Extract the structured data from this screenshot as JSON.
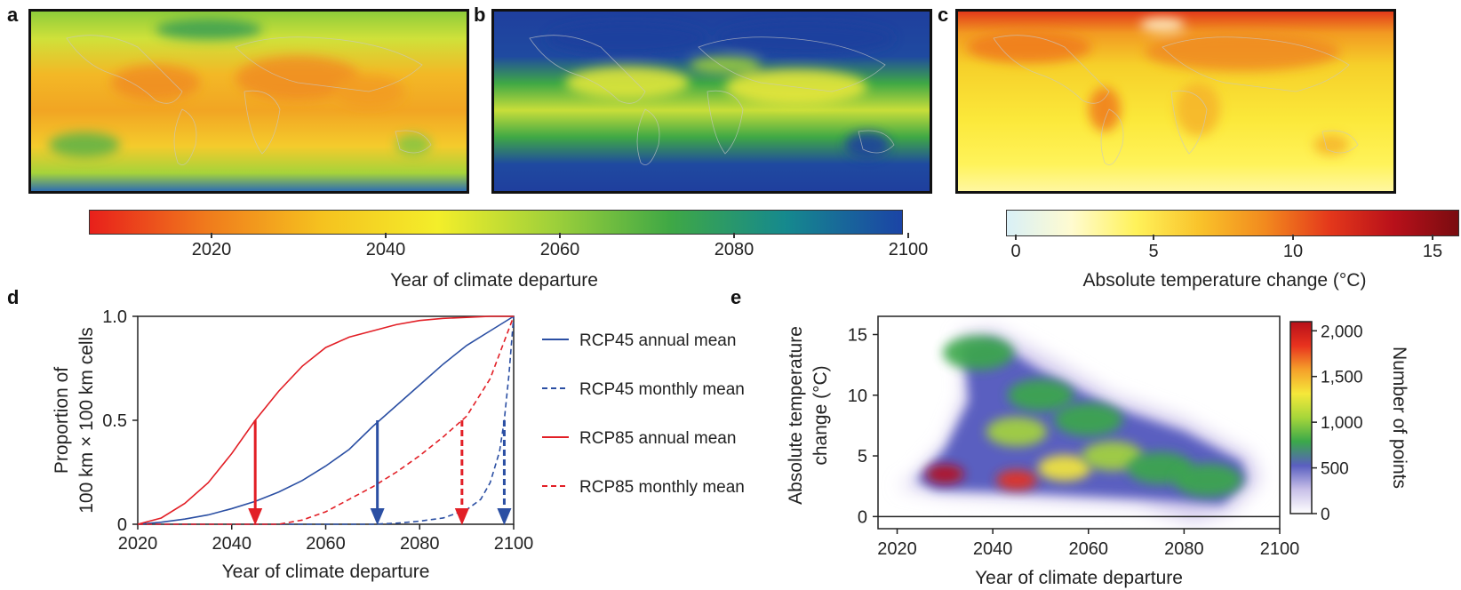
{
  "panel_labels": {
    "a": "a",
    "b": "b",
    "c": "c",
    "d": "d",
    "e": "e"
  },
  "colorbar_year": {
    "label": "Year of climate departure",
    "ticks": [
      "2020",
      "2040",
      "2060",
      "2080",
      "2100"
    ],
    "colors": [
      "#e8201b",
      "#f07a1c",
      "#f5c21f",
      "#f3ee2a",
      "#9ed03a",
      "#3fa845",
      "#15898e",
      "#1b44a6"
    ]
  },
  "colorbar_temp": {
    "label": "Absolute temperature change (°C)",
    "ticks": [
      "0",
      "5",
      "10",
      "15"
    ],
    "colors": [
      "#d9f0f7",
      "#fffbd0",
      "#fff25a",
      "#f9c22a",
      "#f28a1e",
      "#e4381b",
      "#b8101a",
      "#7a0c10"
    ]
  },
  "chart_data": [
    {
      "panel": "d",
      "type": "line",
      "xlabel": "Year of climate departure",
      "ylabel": "Proportion of 100 km × 100 km cells",
      "ylabel_lines": [
        "Proportion of",
        "100 km × 100 km cells"
      ],
      "xlim": [
        2020,
        2100
      ],
      "ylim": [
        0,
        1
      ],
      "xticks": [
        "2020",
        "2040",
        "2060",
        "2080",
        "2100"
      ],
      "yticks": [
        "0",
        "0.5",
        "1.0"
      ],
      "legend_position": "right",
      "series": [
        {
          "name": "RCP45 annual mean",
          "color": "#2b4fa3",
          "dash": false,
          "x": [
            2020,
            2025,
            2030,
            2035,
            2040,
            2045,
            2050,
            2055,
            2060,
            2065,
            2070,
            2075,
            2080,
            2085,
            2090,
            2095,
            2100
          ],
          "y": [
            0,
            0.01,
            0.025,
            0.045,
            0.075,
            0.11,
            0.155,
            0.21,
            0.28,
            0.36,
            0.47,
            0.57,
            0.67,
            0.77,
            0.86,
            0.93,
            1.0
          ]
        },
        {
          "name": "RCP45 monthly mean",
          "color": "#2b4fa3",
          "dash": true,
          "x": [
            2020,
            2070,
            2075,
            2080,
            2085,
            2090,
            2093,
            2095,
            2097,
            2098,
            2099,
            2100
          ],
          "y": [
            0,
            0,
            0.005,
            0.015,
            0.03,
            0.07,
            0.12,
            0.2,
            0.35,
            0.5,
            0.72,
            1.0
          ]
        },
        {
          "name": "RCP85 annual mean",
          "color": "#e21f26",
          "dash": false,
          "x": [
            2020,
            2025,
            2030,
            2035,
            2040,
            2045,
            2050,
            2055,
            2060,
            2065,
            2070,
            2075,
            2080,
            2085,
            2090,
            2095,
            2100
          ],
          "y": [
            0,
            0.03,
            0.1,
            0.2,
            0.34,
            0.5,
            0.64,
            0.76,
            0.85,
            0.9,
            0.93,
            0.96,
            0.98,
            0.99,
            0.995,
            1.0,
            1.0
          ]
        },
        {
          "name": "RCP85 monthly mean",
          "color": "#e21f26",
          "dash": true,
          "x": [
            2020,
            2050,
            2055,
            2060,
            2065,
            2070,
            2075,
            2080,
            2085,
            2090,
            2095,
            2100
          ],
          "y": [
            0,
            0,
            0.02,
            0.06,
            0.12,
            0.18,
            0.25,
            0.33,
            0.42,
            0.52,
            0.7,
            1.0
          ]
        }
      ],
      "arrows": [
        {
          "x": 2045,
          "color": "#e21f26",
          "dash": false
        },
        {
          "x": 2071,
          "color": "#2b4fa3",
          "dash": false
        },
        {
          "x": 2089,
          "color": "#e21f26",
          "dash": true
        },
        {
          "x": 2098,
          "color": "#2b4fa3",
          "dash": true
        }
      ]
    },
    {
      "panel": "e",
      "type": "heatmap",
      "xlabel": "Year of climate departure",
      "ylabel": "Absolute temperature change (°C)",
      "ylabel_lines": [
        "Absolute temperature",
        "change (°C)"
      ],
      "xlim": [
        2016,
        2100
      ],
      "ylim": [
        -1,
        16.5
      ],
      "xticks": [
        "2020",
        "2040",
        "2060",
        "2080",
        "2100"
      ],
      "yticks": [
        "0",
        "5",
        "10",
        "15"
      ],
      "colorbar": {
        "label": "Number of points",
        "range": [
          0,
          2100
        ],
        "ticks": [
          "0",
          "500",
          "1,000",
          "1,500",
          "2,000"
        ],
        "colors": [
          "#ffffff",
          "#c8c0e8",
          "#5a5fc0",
          "#3aa84a",
          "#a6d63a",
          "#f5e83a",
          "#f5a02a",
          "#e8321e",
          "#b8101a"
        ]
      },
      "density_blobs": [
        {
          "x": 2030,
          "y": 3.5,
          "level": 2000
        },
        {
          "x": 2045,
          "y": 3.0,
          "level": 1900
        },
        {
          "x": 2055,
          "y": 4.0,
          "level": 1400
        },
        {
          "x": 2045,
          "y": 7.0,
          "level": 1100
        },
        {
          "x": 2050,
          "y": 10.0,
          "level": 900
        },
        {
          "x": 2065,
          "y": 5.0,
          "level": 1100
        },
        {
          "x": 2075,
          "y": 4.0,
          "level": 900
        },
        {
          "x": 2085,
          "y": 3.0,
          "level": 800
        },
        {
          "x": 2037,
          "y": 13.5,
          "level": 700
        },
        {
          "x": 2060,
          "y": 8.0,
          "level": 800
        }
      ]
    }
  ]
}
